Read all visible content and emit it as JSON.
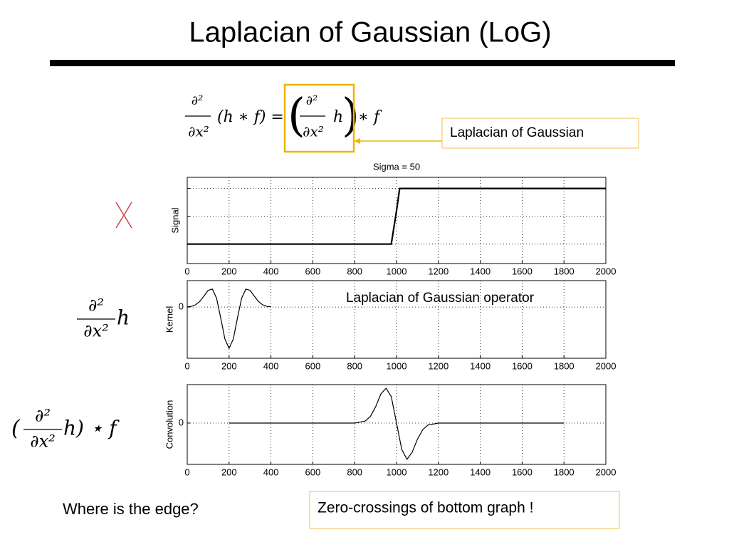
{
  "title": "Laplacian of Gaussian (LoG)",
  "equation": {
    "lhs_num": "∂²",
    "lhs_den": "∂x²",
    "lhs_rest": "(h ∗ f) =",
    "rhs_open": "(",
    "rhs_num": "∂²",
    "rhs_den": "∂x²",
    "rhs_h": "h",
    "rhs_close": ")",
    "rhs_rest": "∗ f"
  },
  "callout": "Laplacian of Gaussian",
  "kernel_formula": {
    "num": "∂²",
    "den": "∂x²",
    "rest": "h"
  },
  "conv_formula": {
    "open": "(",
    "num": "∂²",
    "den": "∂x²",
    "rest": "h) ⋆ f"
  },
  "question": "Where is the edge?",
  "answer": "Zero-crossings of bottom graph !",
  "chart_data": [
    {
      "type": "line",
      "title": "Sigma = 50",
      "y_label": "Signal",
      "color": "#000000",
      "x": [
        0,
        975,
        1000,
        1015,
        2000
      ],
      "values": [
        0,
        0,
        0.6,
        1,
        1
      ],
      "xlim": [
        0,
        2000
      ],
      "xticks": [
        0,
        200,
        400,
        600,
        800,
        1000,
        1200,
        1400,
        1600,
        1800,
        2000
      ],
      "ylim": [
        -0.35,
        1.2
      ],
      "ygrid": [
        0,
        0.5,
        1
      ],
      "grid": true
    },
    {
      "type": "line",
      "y_label": "Kernel",
      "annotation": "Laplacian of Gaussian operator",
      "color": "#000000",
      "x": [
        0,
        20,
        40,
        60,
        80,
        100,
        120,
        140,
        160,
        180,
        200,
        220,
        240,
        260,
        280,
        300,
        320,
        340,
        360,
        380,
        400
      ],
      "values": [
        0.005,
        0.018,
        0.055,
        0.136,
        0.267,
        0.406,
        0.434,
        0.214,
        -0.261,
        -0.775,
        -1,
        -0.775,
        -0.261,
        0.214,
        0.434,
        0.406,
        0.267,
        0.136,
        0.055,
        0.018,
        0.005
      ],
      "xlim": [
        0,
        2000
      ],
      "xticks": [
        0,
        200,
        400,
        600,
        800,
        1000,
        1200,
        1400,
        1600,
        1800,
        2000
      ],
      "ylim": [
        -1.24,
        0.64
      ],
      "yticks": [
        0
      ],
      "grid": true
    },
    {
      "type": "line",
      "y_label": "Convolution",
      "color": "#000000",
      "x": [
        200,
        400,
        600,
        800,
        850,
        875,
        900,
        925,
        950,
        975,
        1000,
        1025,
        1050,
        1075,
        1100,
        1125,
        1150,
        1200,
        1400,
        1600,
        1800
      ],
      "values": [
        0,
        0,
        0,
        0,
        0.055,
        0.181,
        0.446,
        0.803,
        0.96,
        0.728,
        0,
        -0.728,
        -1,
        -0.803,
        -0.446,
        -0.181,
        -0.055,
        0,
        0,
        0,
        0
      ],
      "xlim": [
        0,
        2000
      ],
      "xticks": [
        0,
        200,
        400,
        600,
        800,
        1000,
        1200,
        1400,
        1600,
        1800,
        2000
      ],
      "ylim": [
        -1.14,
        1.06
      ],
      "yticks": [
        0
      ],
      "grid": true
    }
  ]
}
